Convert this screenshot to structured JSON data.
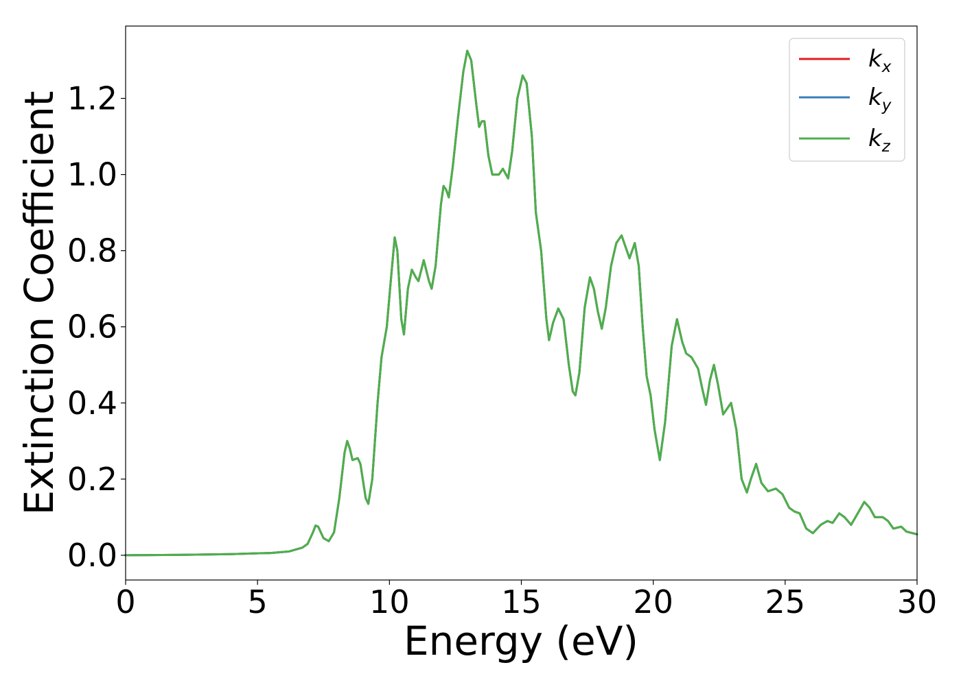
{
  "chart_data": {
    "type": "line",
    "title": "",
    "xlabel": "Energy (eV)",
    "ylabel": "Extinction Coefficient",
    "xlim": [
      0,
      30
    ],
    "ylim": [
      -0.065,
      1.39
    ],
    "x_ticks": [
      0,
      5,
      10,
      15,
      20,
      25,
      30
    ],
    "x_tick_labels": [
      "0",
      "5",
      "10",
      "15",
      "20",
      "25",
      "30"
    ],
    "y_ticks": [
      0.0,
      0.2,
      0.4,
      0.6,
      0.8,
      1.0,
      1.2
    ],
    "y_tick_labels": [
      "0.0",
      "0.2",
      "0.4",
      "0.6",
      "0.8",
      "1.0",
      "1.2"
    ],
    "grid": false,
    "legend_position": "top-right",
    "legend": {
      "kx": {
        "base": "k",
        "sub": "x"
      },
      "ky": {
        "base": "k",
        "sub": "y"
      },
      "kz": {
        "base": "k",
        "sub": "z"
      }
    },
    "series": [
      {
        "key": "kx",
        "color": "#e41a1c",
        "points": "shared"
      },
      {
        "key": "ky",
        "color": "#377eb8",
        "points": "shared"
      },
      {
        "key": "kz",
        "color": "#4daf4a",
        "points": "shared"
      }
    ],
    "points": [
      [
        0.0,
        0.0
      ],
      [
        2.0,
        0.001
      ],
      [
        4.0,
        0.003
      ],
      [
        5.5,
        0.006
      ],
      [
        6.2,
        0.01
      ],
      [
        6.7,
        0.02
      ],
      [
        6.9,
        0.03
      ],
      [
        7.1,
        0.06
      ],
      [
        7.2,
        0.078
      ],
      [
        7.3,
        0.075
      ],
      [
        7.5,
        0.045
      ],
      [
        7.7,
        0.037
      ],
      [
        7.9,
        0.06
      ],
      [
        8.1,
        0.15
      ],
      [
        8.3,
        0.27
      ],
      [
        8.4,
        0.3
      ],
      [
        8.5,
        0.28
      ],
      [
        8.6,
        0.25
      ],
      [
        8.8,
        0.255
      ],
      [
        8.9,
        0.24
      ],
      [
        9.1,
        0.15
      ],
      [
        9.2,
        0.135
      ],
      [
        9.35,
        0.2
      ],
      [
        9.55,
        0.4
      ],
      [
        9.7,
        0.52
      ],
      [
        9.9,
        0.6
      ],
      [
        10.05,
        0.72
      ],
      [
        10.2,
        0.835
      ],
      [
        10.3,
        0.8
      ],
      [
        10.45,
        0.62
      ],
      [
        10.55,
        0.58
      ],
      [
        10.7,
        0.7
      ],
      [
        10.85,
        0.75
      ],
      [
        11.0,
        0.73
      ],
      [
        11.1,
        0.72
      ],
      [
        11.3,
        0.775
      ],
      [
        11.5,
        0.72
      ],
      [
        11.6,
        0.7
      ],
      [
        11.75,
        0.76
      ],
      [
        11.95,
        0.92
      ],
      [
        12.05,
        0.97
      ],
      [
        12.15,
        0.96
      ],
      [
        12.25,
        0.94
      ],
      [
        12.4,
        1.02
      ],
      [
        12.6,
        1.15
      ],
      [
        12.8,
        1.27
      ],
      [
        12.95,
        1.325
      ],
      [
        13.1,
        1.3
      ],
      [
        13.3,
        1.18
      ],
      [
        13.4,
        1.125
      ],
      [
        13.5,
        1.14
      ],
      [
        13.6,
        1.14
      ],
      [
        13.75,
        1.05
      ],
      [
        13.9,
        1.0
      ],
      [
        14.05,
        1.0
      ],
      [
        14.15,
        1.0
      ],
      [
        14.3,
        1.015
      ],
      [
        14.5,
        0.99
      ],
      [
        14.65,
        1.06
      ],
      [
        14.85,
        1.2
      ],
      [
        15.05,
        1.26
      ],
      [
        15.2,
        1.24
      ],
      [
        15.4,
        1.1
      ],
      [
        15.55,
        0.9
      ],
      [
        15.75,
        0.8
      ],
      [
        15.95,
        0.62
      ],
      [
        16.05,
        0.565
      ],
      [
        16.2,
        0.61
      ],
      [
        16.4,
        0.648
      ],
      [
        16.6,
        0.62
      ],
      [
        16.8,
        0.5
      ],
      [
        16.95,
        0.43
      ],
      [
        17.05,
        0.42
      ],
      [
        17.2,
        0.48
      ],
      [
        17.4,
        0.65
      ],
      [
        17.6,
        0.73
      ],
      [
        17.75,
        0.7
      ],
      [
        17.9,
        0.64
      ],
      [
        18.05,
        0.595
      ],
      [
        18.2,
        0.65
      ],
      [
        18.4,
        0.76
      ],
      [
        18.6,
        0.82
      ],
      [
        18.8,
        0.84
      ],
      [
        18.95,
        0.81
      ],
      [
        19.1,
        0.78
      ],
      [
        19.3,
        0.82
      ],
      [
        19.45,
        0.76
      ],
      [
        19.6,
        0.6
      ],
      [
        19.75,
        0.47
      ],
      [
        19.9,
        0.42
      ],
      [
        20.05,
        0.33
      ],
      [
        20.25,
        0.25
      ],
      [
        20.45,
        0.35
      ],
      [
        20.7,
        0.55
      ],
      [
        20.9,
        0.62
      ],
      [
        21.1,
        0.56
      ],
      [
        21.25,
        0.53
      ],
      [
        21.45,
        0.52
      ],
      [
        21.7,
        0.49
      ],
      [
        21.85,
        0.44
      ],
      [
        22.0,
        0.395
      ],
      [
        22.15,
        0.46
      ],
      [
        22.3,
        0.5
      ],
      [
        22.45,
        0.45
      ],
      [
        22.65,
        0.37
      ],
      [
        22.95,
        0.4
      ],
      [
        23.15,
        0.33
      ],
      [
        23.35,
        0.2
      ],
      [
        23.55,
        0.165
      ],
      [
        23.7,
        0.2
      ],
      [
        23.9,
        0.24
      ],
      [
        24.1,
        0.19
      ],
      [
        24.35,
        0.168
      ],
      [
        24.65,
        0.175
      ],
      [
        24.9,
        0.16
      ],
      [
        25.15,
        0.125
      ],
      [
        25.35,
        0.115
      ],
      [
        25.55,
        0.11
      ],
      [
        25.8,
        0.07
      ],
      [
        26.05,
        0.058
      ],
      [
        26.35,
        0.08
      ],
      [
        26.6,
        0.09
      ],
      [
        26.8,
        0.085
      ],
      [
        27.05,
        0.11
      ],
      [
        27.25,
        0.1
      ],
      [
        27.5,
        0.08
      ],
      [
        27.75,
        0.11
      ],
      [
        28.0,
        0.14
      ],
      [
        28.2,
        0.125
      ],
      [
        28.4,
        0.1
      ],
      [
        28.7,
        0.1
      ],
      [
        28.9,
        0.09
      ],
      [
        29.1,
        0.07
      ],
      [
        29.4,
        0.075
      ],
      [
        29.6,
        0.062
      ],
      [
        30.0,
        0.055
      ]
    ]
  }
}
